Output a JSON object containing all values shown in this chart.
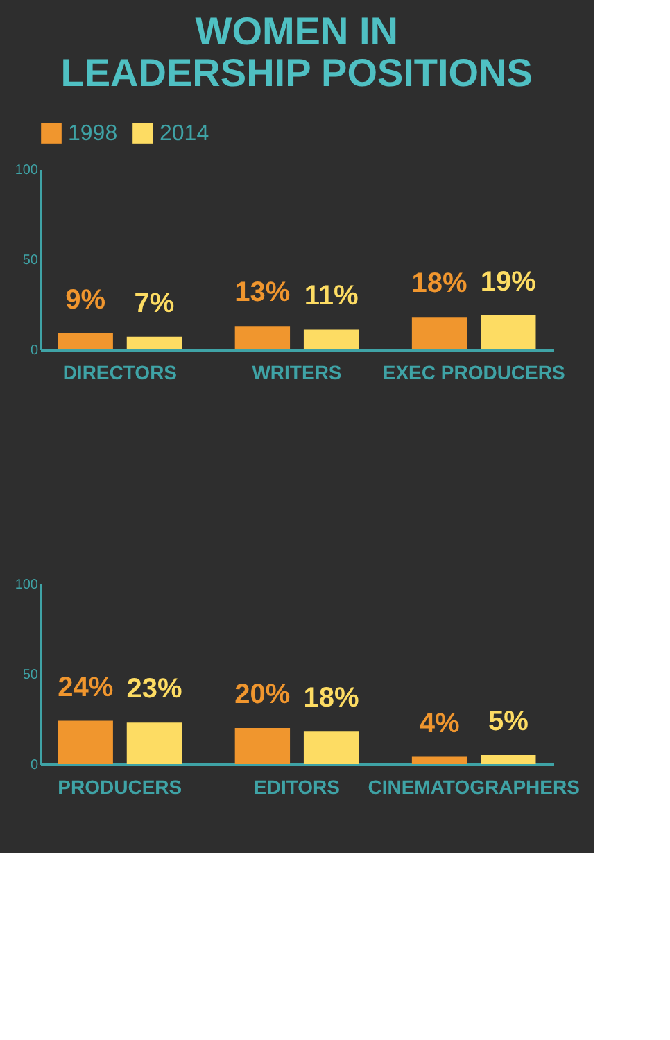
{
  "chart_data": [
    {
      "type": "bar",
      "title": "WOMEN IN LEADERSHIP POSITIONS",
      "categories": [
        "DIRECTORS",
        "WRITERS",
        "EXEC PRODUCERS"
      ],
      "series": [
        {
          "name": "1998",
          "color": "#f0962e",
          "values": [
            9,
            13,
            18
          ],
          "value_labels": [
            "9%",
            "13%",
            "18%"
          ]
        },
        {
          "name": "2014",
          "color": "#fddc63",
          "values": [
            7,
            11,
            19
          ],
          "value_labels": [
            "7%",
            "11%",
            "19%"
          ]
        }
      ],
      "ylim": [
        0,
        100
      ],
      "yticks": [
        0,
        50,
        100
      ],
      "grid": false,
      "legend": "top"
    },
    {
      "type": "bar",
      "categories": [
        "PRODUCERS",
        "EDITORS",
        "CINEMATOGRAPHERS"
      ],
      "series": [
        {
          "name": "1998",
          "color": "#f0962e",
          "values": [
            24,
            20,
            4
          ],
          "value_labels": [
            "24%",
            "20%",
            "4%"
          ]
        },
        {
          "name": "2014",
          "color": "#fddc63",
          "values": [
            23,
            18,
            5
          ],
          "value_labels": [
            "23%",
            "18%",
            "5%"
          ]
        }
      ],
      "ylim": [
        0,
        100
      ],
      "yticks": [
        0,
        50,
        100
      ],
      "grid": false,
      "legend": false
    }
  ]
}
